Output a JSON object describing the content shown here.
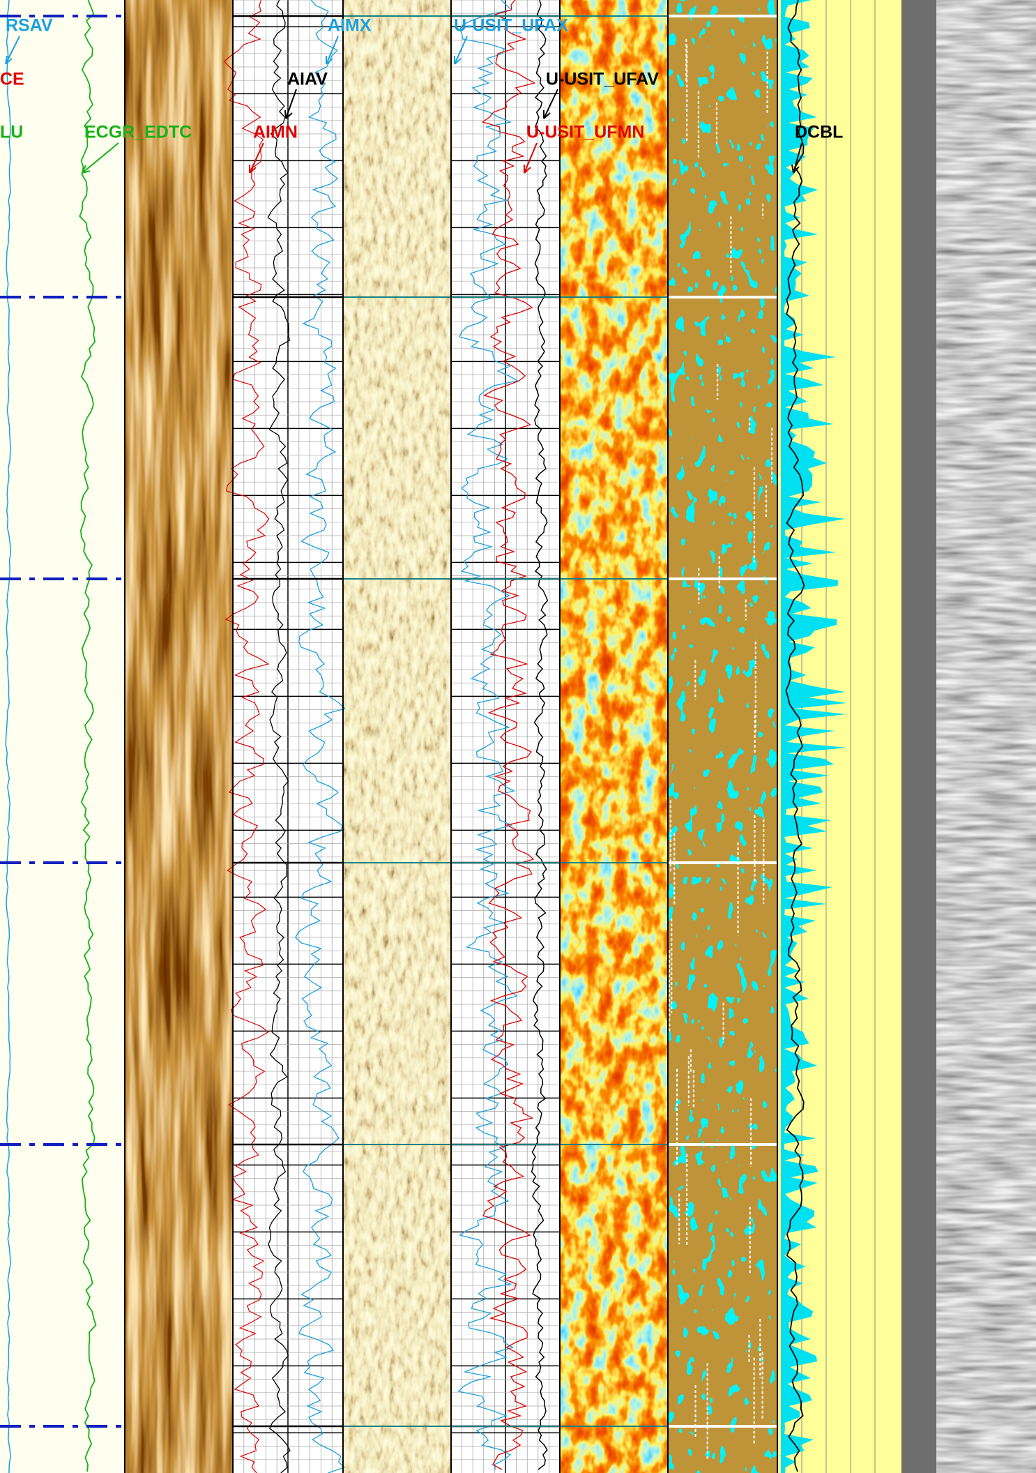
{
  "labels": {
    "rsav": "RSAV",
    "ce": "CE",
    "lu": "LU",
    "ecgr_edtc": "ECGR_EDTC",
    "aimn": "AIMN",
    "aiav": "AIAV",
    "aimx": "AIMX",
    "ufax": "U-USIT_UFAX",
    "ufav": "U-USIT_UFAV",
    "ufmn": "U-USIT_UFMN",
    "dcbl": "DCBL"
  }
}
